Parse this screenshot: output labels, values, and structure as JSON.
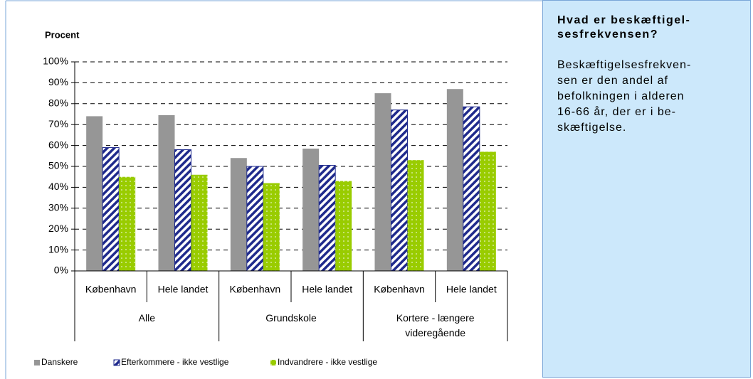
{
  "chart_data": {
    "type": "bar",
    "ylabel": "Procent",
    "groups": [
      "Alle",
      "Grundskole",
      "Kortere - længere videregående"
    ],
    "categories": [
      "København",
      "Hele landet",
      "København",
      "Hele landet",
      "København",
      "Hele landet"
    ],
    "series": [
      {
        "name": "Danskere",
        "color": "#969696",
        "pattern": "solid",
        "values": [
          74,
          74.5,
          54,
          58.5,
          85,
          87
        ]
      },
      {
        "name": "Efterkommere - ikke vestlige",
        "color": "#1f2a8c",
        "pattern": "hatch",
        "values": [
          59,
          58,
          50,
          50.5,
          77,
          78.5
        ]
      },
      {
        "name": "Indvandrere - ikke vestlige",
        "color": "#99cc00",
        "pattern": "dots",
        "values": [
          45,
          46,
          42,
          43,
          53,
          57
        ]
      }
    ],
    "ylim": [
      0,
      100
    ],
    "yticks": [
      {
        "value": 0,
        "label": "0%"
      },
      {
        "value": 10,
        "label": "10%"
      },
      {
        "value": 20,
        "label": "20%"
      },
      {
        "value": 30,
        "label": "30%"
      },
      {
        "value": 40,
        "label": "40%"
      },
      {
        "value": 50,
        "label": "50%"
      },
      {
        "value": 60,
        "label": "60%"
      },
      {
        "value": 70,
        "label": "70%"
      },
      {
        "value": 80,
        "label": "80%"
      },
      {
        "value": 90,
        "label": "90%"
      },
      {
        "value": 100,
        "label": "100%"
      }
    ],
    "grid": true
  },
  "sidebar": {
    "title_lines": [
      "Hvad er beskæftigel-",
      "sesfrekvensen?"
    ],
    "body_lines": [
      "Beskæftigelsesfrekven-",
      "sen er den andel af",
      "befolkningen i alderen",
      "16-66 år, der er i be-",
      "skæftigelse."
    ]
  }
}
